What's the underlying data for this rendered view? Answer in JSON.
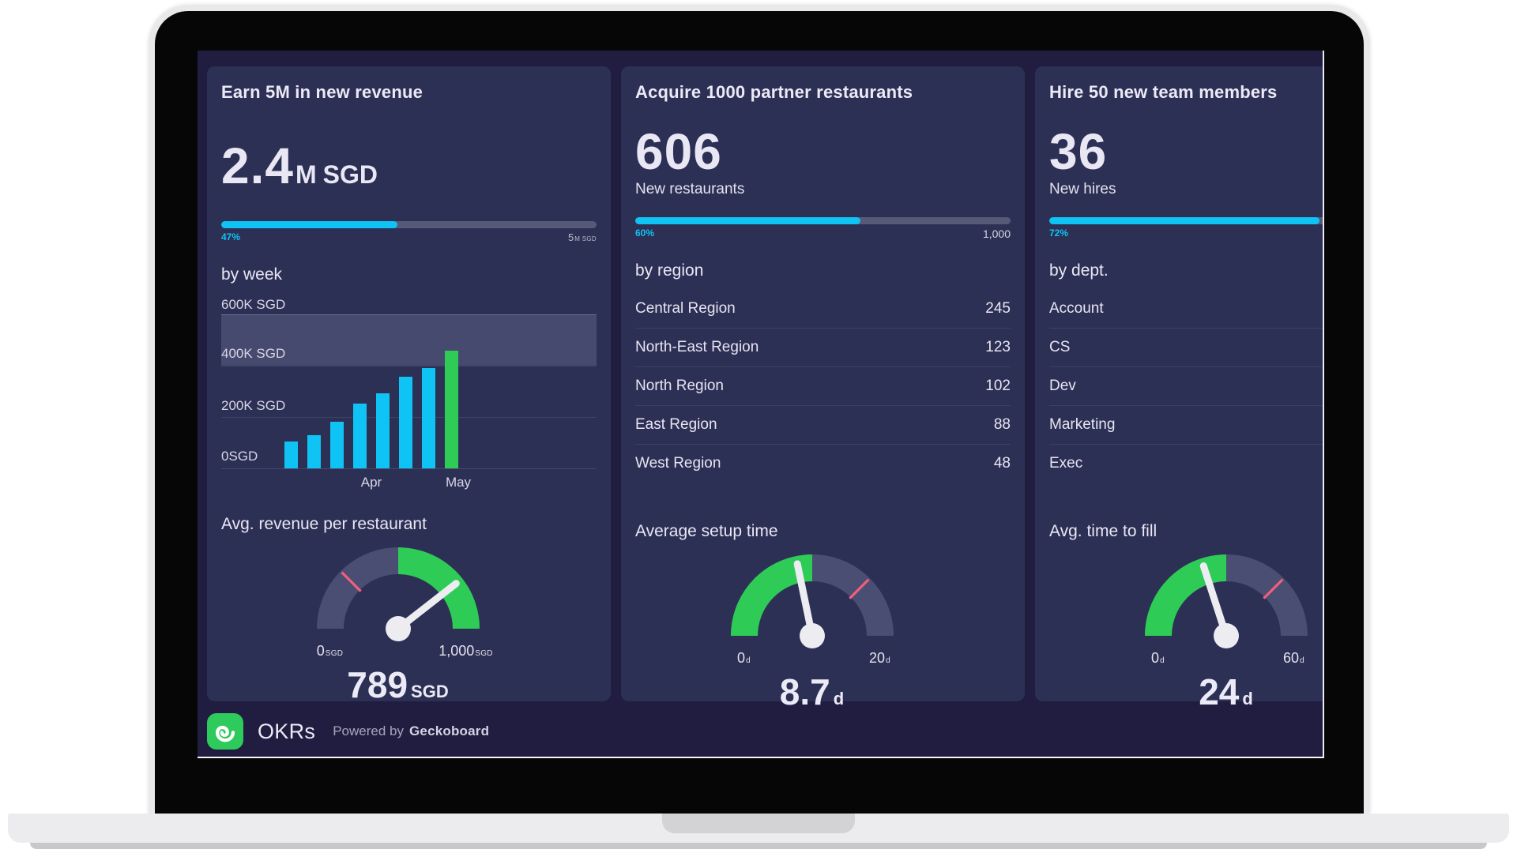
{
  "footer": {
    "dashboard_name": "OKRs",
    "powered_by": "Powered by",
    "brand": "Geckoboard"
  },
  "panels": {
    "revenue": {
      "title": "Earn 5M in new revenue",
      "big": {
        "value": "2.4",
        "suffix": "M",
        "unit": "SGD"
      },
      "progress": {
        "percent": 47,
        "label": "47%",
        "target_value": "5",
        "target_unit": "M SGD"
      },
      "by_label": "by week",
      "metric_label": "Avg. revenue per restaurant"
    },
    "restaurants": {
      "title": "Acquire 1000 partner restaurants",
      "big": {
        "value": "606"
      },
      "caption": "New restaurants",
      "progress": {
        "percent": 60,
        "label": "60%",
        "target_value": "1,000"
      },
      "by_label": "by region",
      "metric_label": "Average setup time"
    },
    "hires": {
      "title": "Hire 50 new team members",
      "big": {
        "value": "36"
      },
      "caption": "New hires",
      "progress": {
        "percent": 72,
        "label": "72%"
      },
      "by_label": "by dept.",
      "metric_label": "Avg. time to fill"
    }
  },
  "chart_data": [
    {
      "type": "bar",
      "title": "by week",
      "categories": [
        "",
        "",
        "",
        "Apr",
        "",
        "",
        "",
        "May"
      ],
      "values": [
        105000,
        130000,
        180000,
        250000,
        290000,
        355000,
        390000,
        455000
      ],
      "unit": "SGD",
      "ylim": [
        0,
        600000
      ],
      "ymax": 600000,
      "yticks": [
        "0SGD",
        "200K SGD",
        "400K SGD",
        "600K SGD"
      ],
      "goal_band": [
        400000,
        600000
      ],
      "highlight_index": 7,
      "colors": {
        "bar": "#0fc3f5",
        "highlight_bar": "#2ecb57",
        "band": "#474b71"
      }
    },
    {
      "type": "gauge",
      "title": "Avg. revenue per restaurant",
      "min": 0,
      "max": 1000,
      "value": 789,
      "unit": "SGD",
      "green_zone": [
        500,
        1000
      ],
      "threshold": 250,
      "min_label": "0",
      "max_label": "1,000",
      "value_label": "789",
      "colors": {
        "arc": "#4a4e72",
        "green": "#2ecb57",
        "threshold": "#f0607a",
        "needle": "#ececf1"
      }
    },
    {
      "type": "table",
      "title": "by region",
      "rows": [
        [
          "Central Region",
          "245"
        ],
        [
          "North-East Region",
          "123"
        ],
        [
          "North Region",
          "102"
        ],
        [
          "East Region",
          "88"
        ],
        [
          "West Region",
          "48"
        ]
      ]
    },
    {
      "type": "gauge",
      "title": "Average setup time",
      "min": 0,
      "max": 20,
      "value": 8.7,
      "unit": "d",
      "green_zone": [
        0,
        10
      ],
      "threshold": 15,
      "min_label": "0",
      "max_label": "20",
      "value_label": "8.7",
      "colors": {
        "arc": "#4a4e72",
        "green": "#2ecb57",
        "threshold": "#f0607a",
        "needle": "#ececf1"
      }
    },
    {
      "type": "table",
      "title": "by dept.",
      "rows": [
        [
          "Account",
          ""
        ],
        [
          "CS",
          ""
        ],
        [
          "Dev",
          ""
        ],
        [
          "Marketing",
          ""
        ],
        [
          "Exec",
          ""
        ]
      ]
    },
    {
      "type": "gauge",
      "title": "Avg. time to fill",
      "min": 0,
      "max": 60,
      "value": 24,
      "unit": "d",
      "green_zone": [
        0,
        30
      ],
      "threshold": 45,
      "min_label": "0",
      "max_label": "60",
      "value_label": "24",
      "colors": {
        "arc": "#4a4e72",
        "green": "#2ecb57",
        "threshold": "#f0607a",
        "needle": "#ececf1"
      }
    }
  ]
}
